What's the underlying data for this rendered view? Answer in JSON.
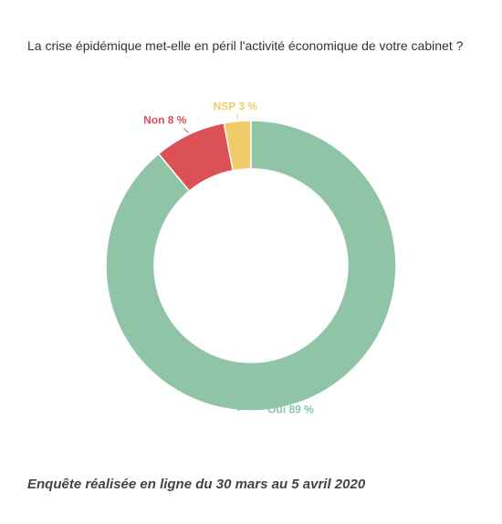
{
  "title": "La crise épidémique met-elle en péril l'activité économique de votre cabinet ?",
  "footnote": "Enquête réalisée en ligne du 30 mars au 5 avril 2020",
  "chart_data": {
    "type": "pie",
    "variant": "donut",
    "slices": [
      {
        "label": "Oui",
        "value": 89,
        "display": "Oui 89 %",
        "color": "#8fc4a6"
      },
      {
        "label": "Non",
        "value": 8,
        "display": "Non 8 %",
        "color": "#dc5156"
      },
      {
        "label": "NSP",
        "value": 3,
        "display": "NSP 3 %",
        "color": "#f2cc6b"
      }
    ],
    "start_angle": "top",
    "direction": "clockwise",
    "slice_order": [
      "NSP",
      "Non",
      "Oui"
    ]
  }
}
